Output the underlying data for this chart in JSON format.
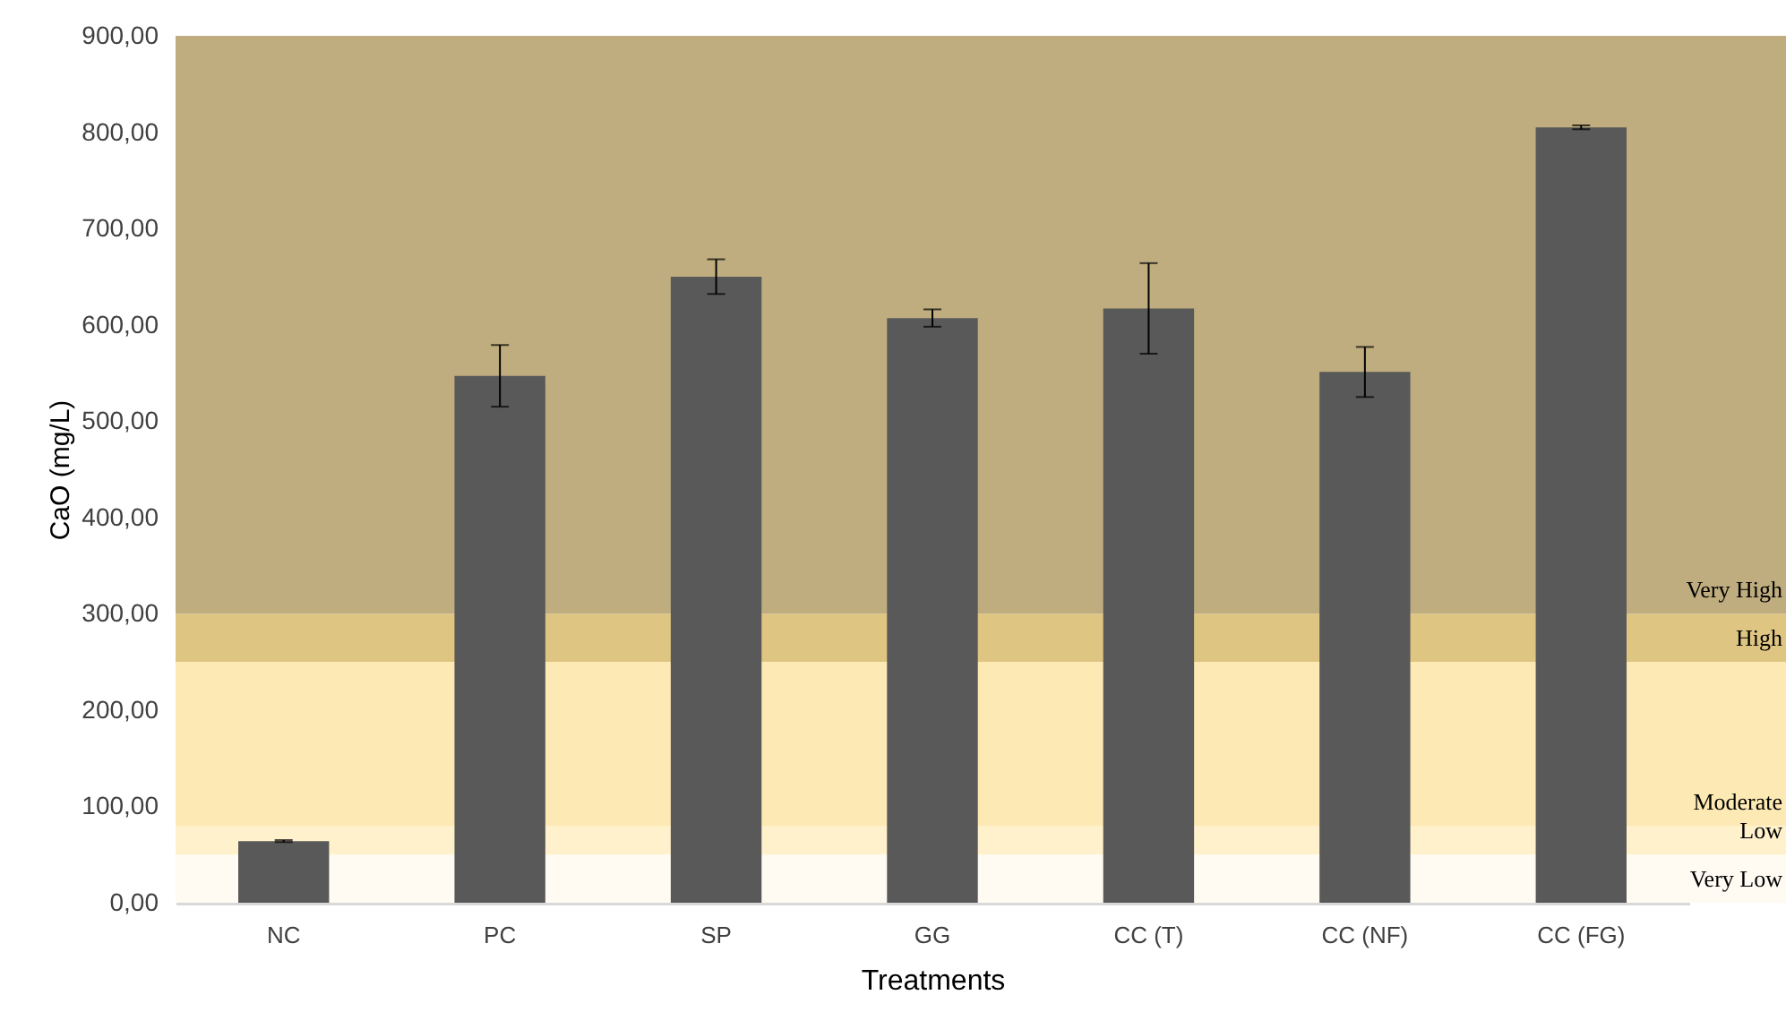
{
  "chart_data": {
    "type": "bar",
    "xlabel": "Treatments",
    "ylabel": "CaO (mg/L)",
    "categories": [
      "NC",
      "PC",
      "SP",
      "GG",
      "CC (T)",
      "CC (NF)",
      "CC (FG)"
    ],
    "values": [
      64,
      547,
      650,
      607,
      617,
      551,
      805
    ],
    "errors": [
      1,
      32,
      18,
      9,
      47,
      26,
      2
    ],
    "color": "#595959",
    "ylim": [
      0,
      900
    ],
    "yticks": [
      {
        "value": 0,
        "label": "0,00"
      },
      {
        "value": 100,
        "label": "100,00"
      },
      {
        "value": 200,
        "label": "200,00"
      },
      {
        "value": 300,
        "label": "300,00"
      },
      {
        "value": 400,
        "label": "400,00"
      },
      {
        "value": 500,
        "label": "500,00"
      },
      {
        "value": 600,
        "label": "600,00"
      },
      {
        "value": 700,
        "label": "700,00"
      },
      {
        "value": 800,
        "label": "800,00"
      },
      {
        "value": 900,
        "label": "900,00"
      }
    ],
    "bands": [
      {
        "axis": "y",
        "from": 0,
        "to": 50,
        "label": "Very Low",
        "color": "#fffbf3"
      },
      {
        "axis": "y",
        "from": 50,
        "to": 80,
        "label": "Low",
        "color": "#fff1cc"
      },
      {
        "axis": "y",
        "from": 80,
        "to": 250,
        "label": "Moderate",
        "color": "#fde9b3"
      },
      {
        "axis": "y",
        "from": 250,
        "to": 300,
        "label": "High",
        "color": "#dfc582"
      },
      {
        "axis": "y",
        "from": 300,
        "to": 900,
        "label": "Very High",
        "color": "#bfad7f"
      }
    ],
    "grid": false
  }
}
